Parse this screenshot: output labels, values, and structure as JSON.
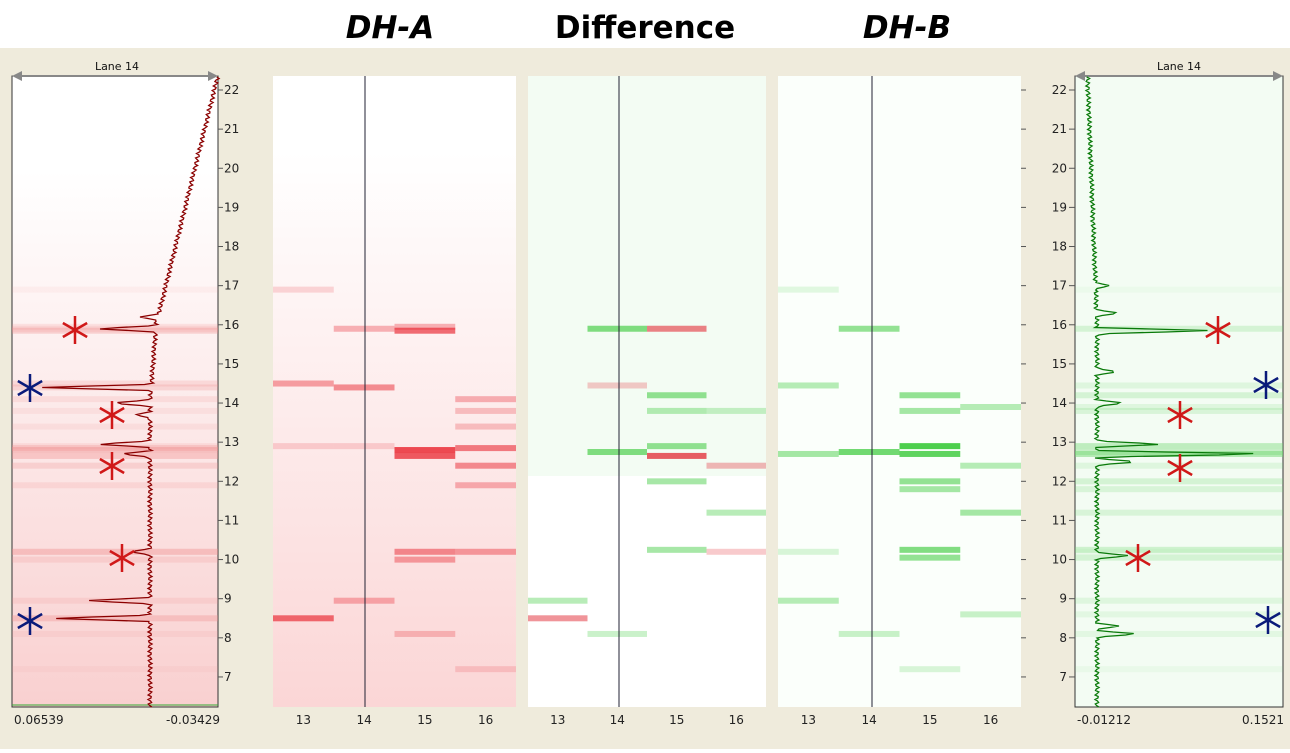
{
  "titles": [
    "DH-A",
    "Difference",
    "DH-B"
  ],
  "left_profile": {
    "header": "Lane 14",
    "x_labels": [
      "0.06539",
      "-0.03429"
    ]
  },
  "right_profile": {
    "header": "Lane 14",
    "x_labels": [
      "-0.01212",
      "0.1521"
    ]
  },
  "y_ticks": [
    "22",
    "21",
    "20",
    "19",
    "18",
    "17",
    "16",
    "15",
    "14",
    "13",
    "12",
    "11",
    "10",
    "9",
    "8",
    "7"
  ],
  "lane_labels": [
    "13",
    "14",
    "15",
    "16"
  ]
}
